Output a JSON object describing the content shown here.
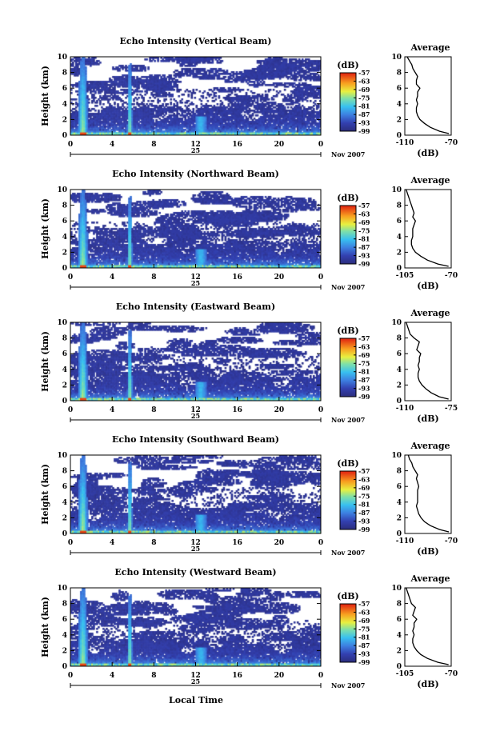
{
  "figure": {
    "xlabel": "Local Time",
    "date_center": "25",
    "date_right": "Nov 2007",
    "ylabel": "Height (km)",
    "avg_title": "Average",
    "avg_unit": "(dB)",
    "cbar_unit": "(dB)"
  },
  "chart_data": [
    {
      "type": "heatmap",
      "title": "Echo Intensity (Vertical Beam)",
      "x_ticks": [
        "0",
        "4",
        "8",
        "12",
        "16",
        "20",
        "0"
      ],
      "y_ticks": [
        "0",
        "2",
        "4",
        "6",
        "8",
        "10"
      ],
      "xlim": [
        0,
        24
      ],
      "ylim": [
        0,
        10
      ],
      "colorbar_ticks": [
        "-57",
        "-63",
        "-69",
        "-75",
        "-81",
        "-87",
        "-93",
        "-99"
      ],
      "colorbar_range": [
        -99,
        -57
      ],
      "average_profile": {
        "x_ticks": [
          "-110",
          "-70"
        ],
        "xlim": [
          -110,
          -70
        ],
        "y_ticks": [
          "0",
          "2",
          "4",
          "6",
          "8",
          "10"
        ],
        "height_km": [
          0.2,
          0.5,
          1,
          1.5,
          2,
          2.5,
          3,
          3.5,
          4,
          4.5,
          5,
          5.5,
          6,
          6.5,
          7,
          7.5,
          8,
          8.5,
          9,
          9.5,
          10
        ],
        "db": [
          -72,
          -80,
          -88,
          -93,
          -97,
          -99,
          -100,
          -100,
          -99,
          -100,
          -99,
          -99,
          -97,
          -100,
          -100,
          -99,
          -101,
          -103,
          -104,
          -106,
          -108
        ]
      }
    },
    {
      "type": "heatmap",
      "title": "Echo Intensity (Northward Beam)",
      "x_ticks": [
        "0",
        "4",
        "8",
        "12",
        "16",
        "20",
        "0"
      ],
      "y_ticks": [
        "0",
        "2",
        "4",
        "6",
        "8",
        "10"
      ],
      "xlim": [
        0,
        24
      ],
      "ylim": [
        0,
        10
      ],
      "colorbar_ticks": [
        "-57",
        "-63",
        "-69",
        "-75",
        "-81",
        "-87",
        "-93",
        "-99"
      ],
      "colorbar_range": [
        -99,
        -57
      ],
      "average_profile": {
        "x_ticks": [
          "-105",
          "-70"
        ],
        "xlim": [
          -105,
          -70
        ],
        "y_ticks": [
          "0",
          "2",
          "4",
          "6",
          "8",
          "10"
        ],
        "height_km": [
          0.2,
          0.5,
          1,
          1.5,
          2,
          2.5,
          3,
          3.5,
          4,
          4.5,
          5,
          5.5,
          6,
          6.5,
          7,
          7.5,
          8,
          8.5,
          9,
          9.5,
          10
        ],
        "db": [
          -72,
          -80,
          -88,
          -93,
          -97,
          -99,
          -100,
          -100,
          -99,
          -99,
          -99,
          -98,
          -97,
          -99,
          -98,
          -99,
          -100,
          -101,
          -102,
          -103,
          -104
        ]
      }
    },
    {
      "type": "heatmap",
      "title": "Echo Intensity (Eastward Beam)",
      "x_ticks": [
        "0",
        "4",
        "8",
        "12",
        "16",
        "20",
        "0"
      ],
      "y_ticks": [
        "0",
        "2",
        "4",
        "6",
        "8",
        "10"
      ],
      "xlim": [
        0,
        24
      ],
      "ylim": [
        0,
        10
      ],
      "colorbar_ticks": [
        "-57",
        "-63",
        "-69",
        "-75",
        "-81",
        "-87",
        "-93",
        "-99"
      ],
      "colorbar_range": [
        -99,
        -57
      ],
      "average_profile": {
        "x_ticks": [
          "-110",
          "-75"
        ],
        "xlim": [
          -110,
          -75
        ],
        "y_ticks": [
          "0",
          "2",
          "4",
          "6",
          "8",
          "10"
        ],
        "height_km": [
          0.2,
          0.5,
          1,
          1.5,
          2,
          2.5,
          3,
          3.5,
          4,
          4.5,
          5,
          5.5,
          6,
          6.5,
          7,
          7.5,
          8,
          8.5,
          9,
          9.5,
          10
        ],
        "db": [
          -77,
          -84,
          -90,
          -94,
          -97,
          -99,
          -100,
          -100,
          -99,
          -100,
          -99,
          -99,
          -98,
          -101,
          -100,
          -99,
          -103,
          -106,
          -107,
          -108,
          -109
        ]
      }
    },
    {
      "type": "heatmap",
      "title": "Echo Intensity (Southward Beam)",
      "x_ticks": [
        "0",
        "4",
        "8",
        "12",
        "16",
        "20",
        "0"
      ],
      "y_ticks": [
        "0",
        "2",
        "4",
        "6",
        "8",
        "10"
      ],
      "xlim": [
        0,
        24
      ],
      "ylim": [
        0,
        10
      ],
      "colorbar_ticks": [
        "-57",
        "-63",
        "-69",
        "-75",
        "-81",
        "-87",
        "-93",
        "-99"
      ],
      "colorbar_range": [
        -99,
        -57
      ],
      "average_profile": {
        "x_ticks": [
          "-110",
          "-70"
        ],
        "xlim": [
          -110,
          -70
        ],
        "y_ticks": [
          "0",
          "2",
          "4",
          "6",
          "8",
          "10"
        ],
        "height_km": [
          0.2,
          0.5,
          1,
          1.5,
          2,
          2.5,
          3,
          3.5,
          4,
          4.5,
          5,
          5.5,
          6,
          6.5,
          7,
          7.5,
          8,
          8.5,
          9,
          9.5,
          10
        ],
        "db": [
          -72,
          -80,
          -88,
          -93,
          -96,
          -98,
          -99,
          -100,
          -99,
          -99,
          -99,
          -99,
          -98,
          -99,
          -100,
          -99,
          -101,
          -103,
          -104,
          -106,
          -107
        ]
      }
    },
    {
      "type": "heatmap",
      "title": "Echo Intensity (Westward Beam)",
      "x_ticks": [
        "0",
        "4",
        "8",
        "12",
        "16",
        "20",
        "0"
      ],
      "y_ticks": [
        "0",
        "2",
        "4",
        "6",
        "8",
        "10"
      ],
      "xlim": [
        0,
        24
      ],
      "ylim": [
        0,
        10
      ],
      "colorbar_ticks": [
        "-57",
        "-63",
        "-69",
        "-75",
        "-81",
        "-87",
        "-93",
        "-99"
      ],
      "colorbar_range": [
        -99,
        -57
      ],
      "average_profile": {
        "x_ticks": [
          "-105",
          "-70"
        ],
        "xlim": [
          -105,
          -70
        ],
        "y_ticks": [
          "0",
          "2",
          "4",
          "6",
          "8",
          "10"
        ],
        "height_km": [
          0.2,
          0.5,
          1,
          1.5,
          2,
          2.5,
          3,
          3.5,
          4,
          4.5,
          5,
          5.5,
          6,
          6.5,
          7,
          7.5,
          8,
          8.5,
          9,
          9.5,
          10
        ],
        "db": [
          -72,
          -80,
          -88,
          -93,
          -96,
          -98,
          -99,
          -99,
          -98,
          -99,
          -98,
          -98,
          -96,
          -99,
          -98,
          -97,
          -100,
          -101,
          -102,
          -103,
          -104
        ]
      }
    }
  ]
}
